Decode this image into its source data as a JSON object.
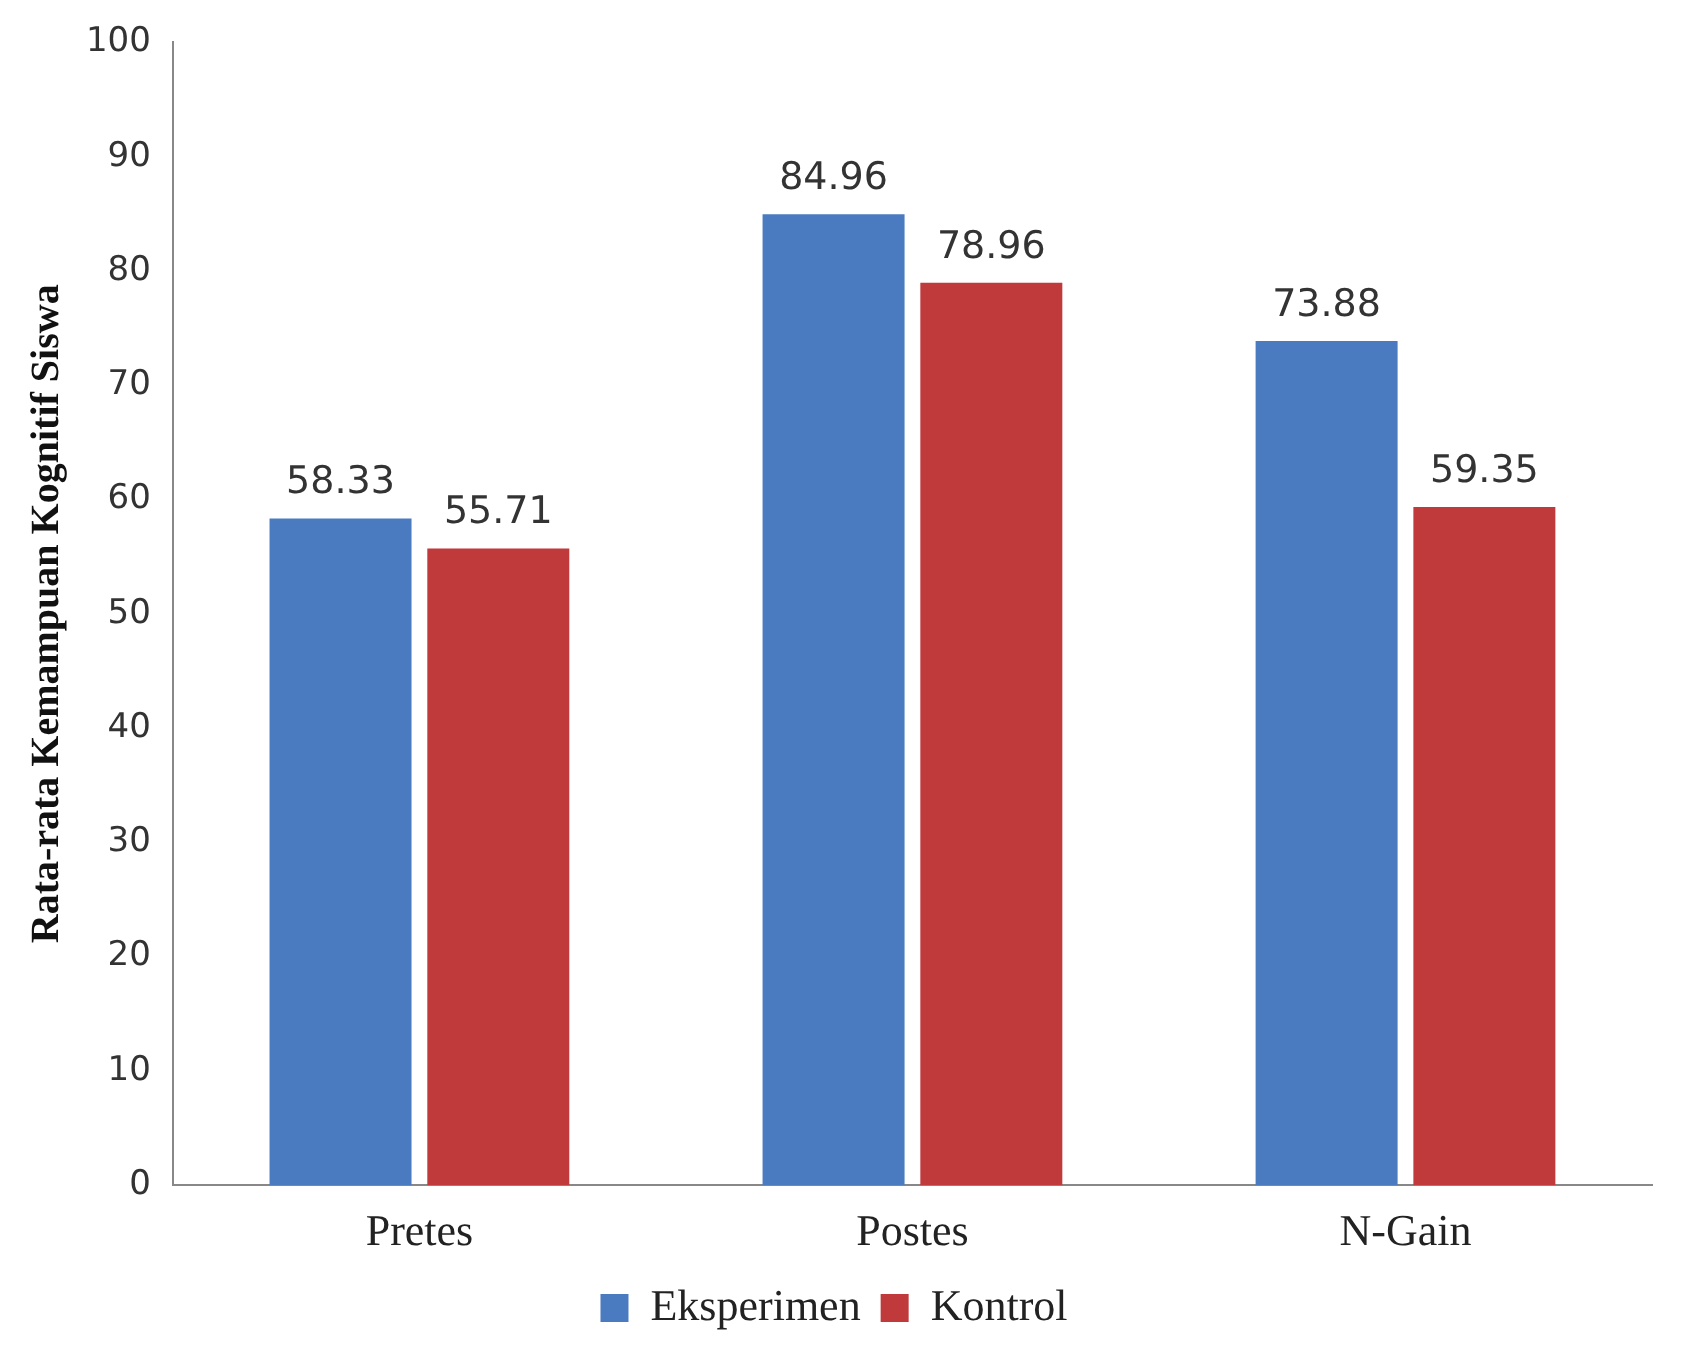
{
  "chart_data": {
    "type": "bar",
    "ylabel": "Rata-rata Kemampuan Kognitif Siswa",
    "categories": [
      "Pretes",
      "Postes",
      "N-Gain"
    ],
    "series": [
      {
        "name": "Eksperimen",
        "color": "#4a7ac0",
        "values": [
          58.33,
          84.96,
          73.88
        ]
      },
      {
        "name": "Kontrol",
        "color": "#c0393b",
        "values": [
          55.71,
          78.96,
          59.35
        ]
      }
    ],
    "ylim": [
      0,
      100
    ],
    "yticks": [
      0,
      10,
      20,
      30,
      40,
      50,
      60,
      70,
      80,
      90,
      100
    ],
    "grid": false,
    "legend": "bottom",
    "data_labels": true
  }
}
